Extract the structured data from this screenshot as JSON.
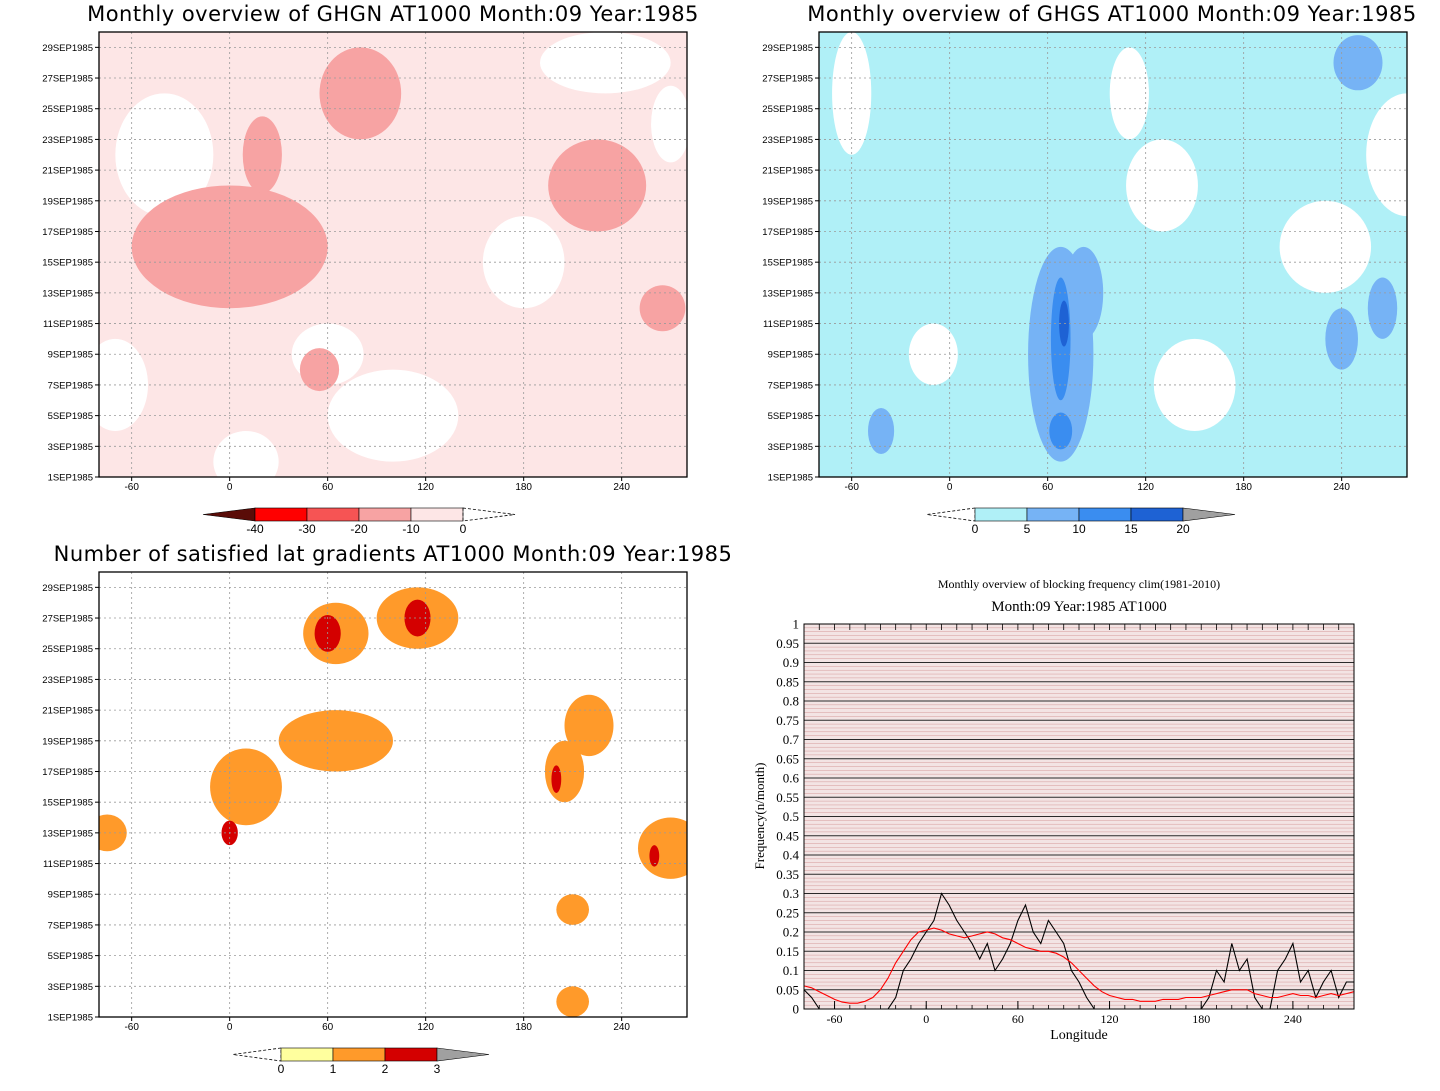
{
  "chart_data": [
    {
      "type": "heatmap",
      "title": "Monthly overview of GHGN AT1000 Month:09 Year:1985",
      "xlabel": "",
      "ylabel": "",
      "x_ticks": [
        "-60",
        "0",
        "60",
        "120",
        "180",
        "240"
      ],
      "y_ticks": [
        "1SEP1985",
        "3SEP1985",
        "5SEP1985",
        "7SEP1985",
        "9SEP1985",
        "11SEP1985",
        "13SEP1985",
        "15SEP1985",
        "17SEP1985",
        "19SEP1985",
        "21SEP1985",
        "23SEP1985",
        "25SEP1985",
        "27SEP1985",
        "29SEP1985"
      ],
      "xlim": [
        -80,
        280
      ],
      "ylim": [
        1,
        30
      ],
      "grid": true,
      "colorbar": {
        "levels": [
          "-40",
          "-30",
          "-20",
          "-10",
          "0"
        ],
        "colors": [
          "#5a0c08",
          "#ff0000",
          "#f65454",
          "#f7a3a3",
          "#fde6e6"
        ],
        "open_end": "right"
      },
      "regions": [
        {
          "level": "-10",
          "lon": 0,
          "day": 16,
          "rx": 60,
          "ry": 4
        },
        {
          "level": "-10",
          "lon": 80,
          "day": 26,
          "rx": 25,
          "ry": 3
        },
        {
          "level": "-10",
          "lon": 225,
          "day": 20,
          "rx": 30,
          "ry": 3
        },
        {
          "level": "-10",
          "lon": 20,
          "day": 22,
          "rx": 12,
          "ry": 2.5
        },
        {
          "level": "-10",
          "lon": 55,
          "day": 8,
          "rx": 12,
          "ry": 1.4
        },
        {
          "level": "-10",
          "lon": 265,
          "day": 12,
          "rx": 14,
          "ry": 1.5
        }
      ]
    },
    {
      "type": "heatmap",
      "title": "Monthly overview of GHGS AT1000 Month:09 Year:1985",
      "xlabel": "",
      "ylabel": "",
      "x_ticks": [
        "-60",
        "0",
        "60",
        "120",
        "180",
        "240"
      ],
      "y_ticks": [
        "1SEP1985",
        "3SEP1985",
        "5SEP1985",
        "7SEP1985",
        "9SEP1985",
        "11SEP1985",
        "13SEP1985",
        "15SEP1985",
        "17SEP1985",
        "19SEP1985",
        "21SEP1985",
        "23SEP1985",
        "25SEP1985",
        "27SEP1985",
        "29SEP1985"
      ],
      "xlim": [
        -80,
        280
      ],
      "ylim": [
        1,
        30
      ],
      "grid": true,
      "colorbar": {
        "levels": [
          "0",
          "5",
          "10",
          "15",
          "20"
        ],
        "colors": [
          "#b0f0f7",
          "#76b3f5",
          "#3a8df0",
          "#1e62d4",
          "#a0a0a0"
        ],
        "open_end": "left"
      },
      "regions": [
        {
          "level": "5",
          "lon": 68,
          "day": 9,
          "rx": 20,
          "ry": 7
        },
        {
          "level": "5",
          "lon": 82,
          "day": 13,
          "rx": 12,
          "ry": 3
        },
        {
          "level": "5",
          "lon": 250,
          "day": 28,
          "rx": 15,
          "ry": 1.8
        },
        {
          "level": "5",
          "lon": 240,
          "day": 10,
          "rx": 10,
          "ry": 2
        },
        {
          "level": "5",
          "lon": 265,
          "day": 12,
          "rx": 9,
          "ry": 2
        },
        {
          "level": "5",
          "lon": -42,
          "day": 4,
          "rx": 8,
          "ry": 1.5
        },
        {
          "level": "10",
          "lon": 68,
          "day": 10,
          "rx": 6,
          "ry": 4
        },
        {
          "level": "10",
          "lon": 68,
          "day": 4,
          "rx": 7,
          "ry": 1.2
        },
        {
          "level": "15",
          "lon": 70,
          "day": 11,
          "rx": 3,
          "ry": 1.5
        }
      ]
    },
    {
      "type": "heatmap",
      "title": "Number of satisfied lat gradients AT1000 Month:09 Year:1985",
      "xlabel": "",
      "ylabel": "",
      "x_ticks": [
        "-60",
        "0",
        "60",
        "120",
        "180",
        "240"
      ],
      "y_ticks": [
        "1SEP1985",
        "3SEP1985",
        "5SEP1985",
        "7SEP1985",
        "9SEP1985",
        "11SEP1985",
        "13SEP1985",
        "15SEP1985",
        "17SEP1985",
        "19SEP1985",
        "21SEP1985",
        "23SEP1985",
        "25SEP1985",
        "27SEP1985",
        "29SEP1985"
      ],
      "xlim": [
        -80,
        280
      ],
      "ylim": [
        1,
        30
      ],
      "grid": true,
      "colorbar": {
        "levels": [
          "0",
          "1",
          "2",
          "3"
        ],
        "colors": [
          "#ffff9e",
          "#ff9a2a",
          "#d40000",
          "#a0a0a0"
        ],
        "open_end": "left"
      },
      "regions": [
        {
          "level": "1",
          "lon": 10,
          "day": 16,
          "rx": 22,
          "ry": 2.5
        },
        {
          "level": "1",
          "lon": 65,
          "day": 19,
          "rx": 35,
          "ry": 2
        },
        {
          "level": "1",
          "lon": 65,
          "day": 26,
          "rx": 20,
          "ry": 2
        },
        {
          "level": "1",
          "lon": 115,
          "day": 27,
          "rx": 25,
          "ry": 2
        },
        {
          "level": "1",
          "lon": 205,
          "day": 17,
          "rx": 12,
          "ry": 2
        },
        {
          "level": "1",
          "lon": 220,
          "day": 20,
          "rx": 15,
          "ry": 2
        },
        {
          "level": "1",
          "lon": 210,
          "day": 8,
          "rx": 10,
          "ry": 1
        },
        {
          "level": "1",
          "lon": 210,
          "day": 2,
          "rx": 10,
          "ry": 1
        },
        {
          "level": "1",
          "lon": 270,
          "day": 12,
          "rx": 20,
          "ry": 2
        },
        {
          "level": "1",
          "lon": -75,
          "day": 13,
          "rx": 12,
          "ry": 1.2
        },
        {
          "level": "2",
          "lon": 60,
          "day": 26,
          "rx": 8,
          "ry": 1.2
        },
        {
          "level": "2",
          "lon": 115,
          "day": 27,
          "rx": 8,
          "ry": 1.2
        },
        {
          "level": "2",
          "lon": 0,
          "day": 13,
          "rx": 5,
          "ry": 0.8
        },
        {
          "level": "2",
          "lon": 200,
          "day": 16.5,
          "rx": 3,
          "ry": 0.9
        },
        {
          "level": "2",
          "lon": 260,
          "day": 11.5,
          "rx": 3,
          "ry": 0.7
        }
      ]
    },
    {
      "type": "line",
      "title": "Monthly overview of blocking frequency clim(1981-2010)",
      "subtitle": "Month:09 Year:1985  AT1000",
      "xlabel": "Longitude",
      "ylabel": "Frequency(n/month)",
      "xlim": [
        -80,
        280
      ],
      "ylim": [
        0,
        1
      ],
      "x_ticks": [
        "-60",
        "0",
        "60",
        "120",
        "180",
        "240"
      ],
      "y_ticks": [
        "0",
        "0.05",
        "0.1",
        "0.15",
        "0.2",
        "0.25",
        "0.3",
        "0.35",
        "0.4",
        "0.45",
        "0.5",
        "0.55",
        "0.6",
        "0.65",
        "0.7",
        "0.75",
        "0.8",
        "0.85",
        "0.9",
        "0.95",
        "1"
      ],
      "series": [
        {
          "color": "#000000",
          "x": [
            -80,
            -75,
            -70,
            -65,
            -60,
            -55,
            -50,
            -45,
            -40,
            -35,
            -30,
            -25,
            -20,
            -15,
            -10,
            -5,
            0,
            5,
            10,
            15,
            20,
            25,
            30,
            35,
            40,
            45,
            50,
            55,
            60,
            65,
            70,
            75,
            80,
            85,
            90,
            95,
            100,
            105,
            110,
            115,
            120,
            125,
            130,
            135,
            140,
            145,
            150,
            155,
            160,
            165,
            170,
            175,
            180,
            185,
            190,
            195,
            200,
            205,
            210,
            215,
            220,
            225,
            230,
            235,
            240,
            245,
            250,
            255,
            260,
            265,
            270,
            275,
            280
          ],
          "y": [
            0.05,
            0.03,
            0.0,
            0.0,
            0.0,
            0.0,
            0.0,
            0.0,
            0.0,
            0.0,
            0.0,
            0.0,
            0.03,
            0.1,
            0.13,
            0.17,
            0.2,
            0.23,
            0.3,
            0.27,
            0.23,
            0.2,
            0.17,
            0.13,
            0.17,
            0.1,
            0.13,
            0.17,
            0.23,
            0.27,
            0.2,
            0.17,
            0.23,
            0.2,
            0.17,
            0.1,
            0.07,
            0.03,
            0.0,
            0.0,
            0.0,
            0.0,
            0.0,
            0.0,
            0.0,
            0.0,
            0.0,
            0.0,
            0.0,
            0.0,
            0.0,
            0.0,
            0.0,
            0.03,
            0.1,
            0.07,
            0.17,
            0.1,
            0.13,
            0.03,
            0.0,
            0.0,
            0.1,
            0.13,
            0.17,
            0.07,
            0.1,
            0.03,
            0.07,
            0.1,
            0.03,
            0.07,
            0.07
          ]
        },
        {
          "color": "#ff0000",
          "x": [
            -80,
            -75,
            -70,
            -65,
            -60,
            -55,
            -50,
            -45,
            -40,
            -35,
            -30,
            -25,
            -20,
            -15,
            -10,
            -5,
            0,
            5,
            10,
            15,
            20,
            25,
            30,
            35,
            40,
            45,
            50,
            55,
            60,
            65,
            70,
            75,
            80,
            85,
            90,
            95,
            100,
            105,
            110,
            115,
            120,
            125,
            130,
            135,
            140,
            145,
            150,
            155,
            160,
            165,
            170,
            175,
            180,
            185,
            190,
            195,
            200,
            205,
            210,
            215,
            220,
            225,
            230,
            235,
            240,
            245,
            250,
            255,
            260,
            265,
            270,
            275,
            280
          ],
          "y": [
            0.06,
            0.055,
            0.045,
            0.035,
            0.025,
            0.018,
            0.015,
            0.015,
            0.02,
            0.03,
            0.05,
            0.08,
            0.12,
            0.15,
            0.18,
            0.2,
            0.205,
            0.21,
            0.205,
            0.195,
            0.19,
            0.185,
            0.19,
            0.195,
            0.2,
            0.195,
            0.185,
            0.18,
            0.17,
            0.16,
            0.155,
            0.15,
            0.15,
            0.145,
            0.135,
            0.12,
            0.1,
            0.08,
            0.06,
            0.045,
            0.035,
            0.03,
            0.025,
            0.025,
            0.02,
            0.02,
            0.02,
            0.025,
            0.025,
            0.025,
            0.03,
            0.03,
            0.03,
            0.035,
            0.04,
            0.045,
            0.05,
            0.05,
            0.05,
            0.04,
            0.035,
            0.03,
            0.03,
            0.035,
            0.04,
            0.035,
            0.035,
            0.03,
            0.035,
            0.04,
            0.035,
            0.04,
            0.045
          ]
        }
      ]
    }
  ]
}
